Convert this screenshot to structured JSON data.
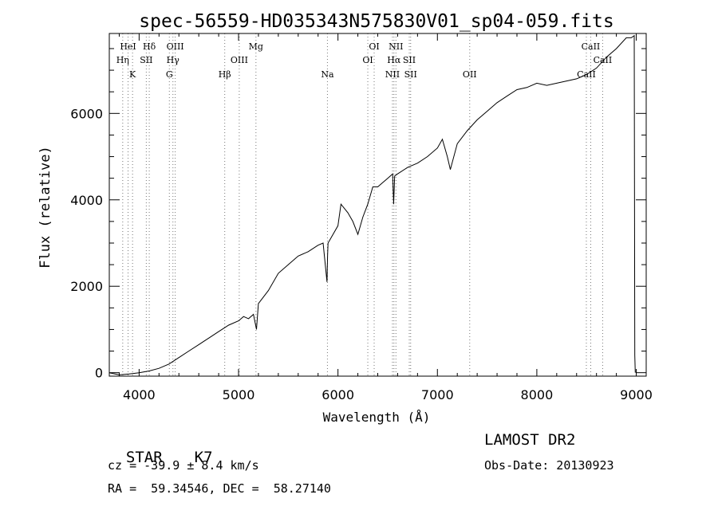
{
  "chart_data": {
    "type": "line",
    "title": "spec-56559-HD035343N575830V01_sp04-059.fits",
    "xlabel": "Wavelength (Å)",
    "ylabel": "Flux (relative)",
    "xlim": [
      3700,
      9100
    ],
    "ylim": [
      -80,
      7850
    ],
    "x_ticks": [
      4000,
      5000,
      6000,
      7000,
      8000,
      9000
    ],
    "y_ticks": [
      0,
      2000,
      4000,
      6000
    ],
    "grid": false,
    "series": [
      {
        "x": [
          3700,
          3800,
          3900,
          4000,
          4100,
          4200,
          4300,
          4400,
          4500,
          4600,
          4700,
          4800,
          4900,
          5000,
          5050,
          5100,
          5150,
          5180,
          5200,
          5300,
          5400,
          5500,
          5600,
          5700,
          5800,
          5850,
          5890,
          5895,
          5900,
          6000,
          6030,
          6100,
          6150,
          6200,
          6250,
          6300,
          6350,
          6400,
          6450,
          6500,
          6550,
          6560,
          6570,
          6600,
          6700,
          6800,
          6900,
          7000,
          7050,
          7100,
          7130,
          7200,
          7300,
          7400,
          7500,
          7600,
          7700,
          7800,
          7900,
          8000,
          8100,
          8200,
          8300,
          8400,
          8500,
          8600,
          8700,
          8800,
          8900,
          8950,
          8980,
          8985,
          8990
        ],
        "y": [
          0,
          -50,
          -30,
          0,
          40,
          100,
          200,
          350,
          500,
          650,
          800,
          950,
          1100,
          1200,
          1300,
          1250,
          1350,
          1000,
          1600,
          1900,
          2300,
          2500,
          2700,
          2800,
          2950,
          3000,
          2100,
          2700,
          3000,
          3400,
          3900,
          3700,
          3500,
          3200,
          3600,
          3900,
          4300,
          4300,
          4400,
          4500,
          4600,
          3900,
          4550,
          4600,
          4750,
          4850,
          5000,
          5200,
          5400,
          5000,
          4700,
          5300,
          5600,
          5850,
          6050,
          6250,
          6400,
          6550,
          6600,
          6700,
          6650,
          6700,
          6750,
          6800,
          6900,
          7050,
          7300,
          7500,
          7750,
          7750,
          7800,
          400,
          0
        ]
      }
    ],
    "spectral_lines": [
      {
        "label": "Hη",
        "wavelength": 3835,
        "row": 2
      },
      {
        "label": "HeI",
        "wavelength": 3889,
        "row": 1
      },
      {
        "label": "K",
        "wavelength": 3934,
        "row": 3
      },
      {
        "label": "SII",
        "wavelength": 4072,
        "row": 2
      },
      {
        "label": "Hδ",
        "wavelength": 4102,
        "row": 1
      },
      {
        "label": "G",
        "wavelength": 4304,
        "row": 3
      },
      {
        "label": "Hγ",
        "wavelength": 4340,
        "row": 2
      },
      {
        "label": "OIII",
        "wavelength": 4363,
        "row": 1
      },
      {
        "label": "Hβ",
        "wavelength": 4861,
        "row": 3
      },
      {
        "label": "OIII",
        "wavelength": 5007,
        "row": 2
      },
      {
        "label": "Mg",
        "wavelength": 5175,
        "row": 1
      },
      {
        "label": "Na",
        "wavelength": 5894,
        "row": 3
      },
      {
        "label": "OI",
        "wavelength": 6300,
        "row": 2
      },
      {
        "label": "OI",
        "wavelength": 6364,
        "row": 1
      },
      {
        "label": "NII",
        "wavelength": 6548,
        "row": 3
      },
      {
        "label": "Hα",
        "wavelength": 6563,
        "row": 2
      },
      {
        "label": "NII",
        "wavelength": 6583,
        "row": 1
      },
      {
        "label": "SII",
        "wavelength": 6717,
        "row": 2
      },
      {
        "label": "SII",
        "wavelength": 6731,
        "row": 3
      },
      {
        "label": "OII",
        "wavelength": 7325,
        "row": 3
      },
      {
        "label": "CaII",
        "wavelength": 8498,
        "row": 3
      },
      {
        "label": "CaII",
        "wavelength": 8542,
        "row": 1
      },
      {
        "label": "CaII",
        "wavelength": 8662,
        "row": 2
      }
    ]
  },
  "info": {
    "class_label": "STAR",
    "subclass": "K7",
    "survey": "LAMOST DR2",
    "cz": "cz = -39.9 ± 8.4 km/s",
    "obs_date": "Obs-Date: 20130923",
    "ra_dec": "RA =  59.34546, DEC =  58.27140"
  }
}
